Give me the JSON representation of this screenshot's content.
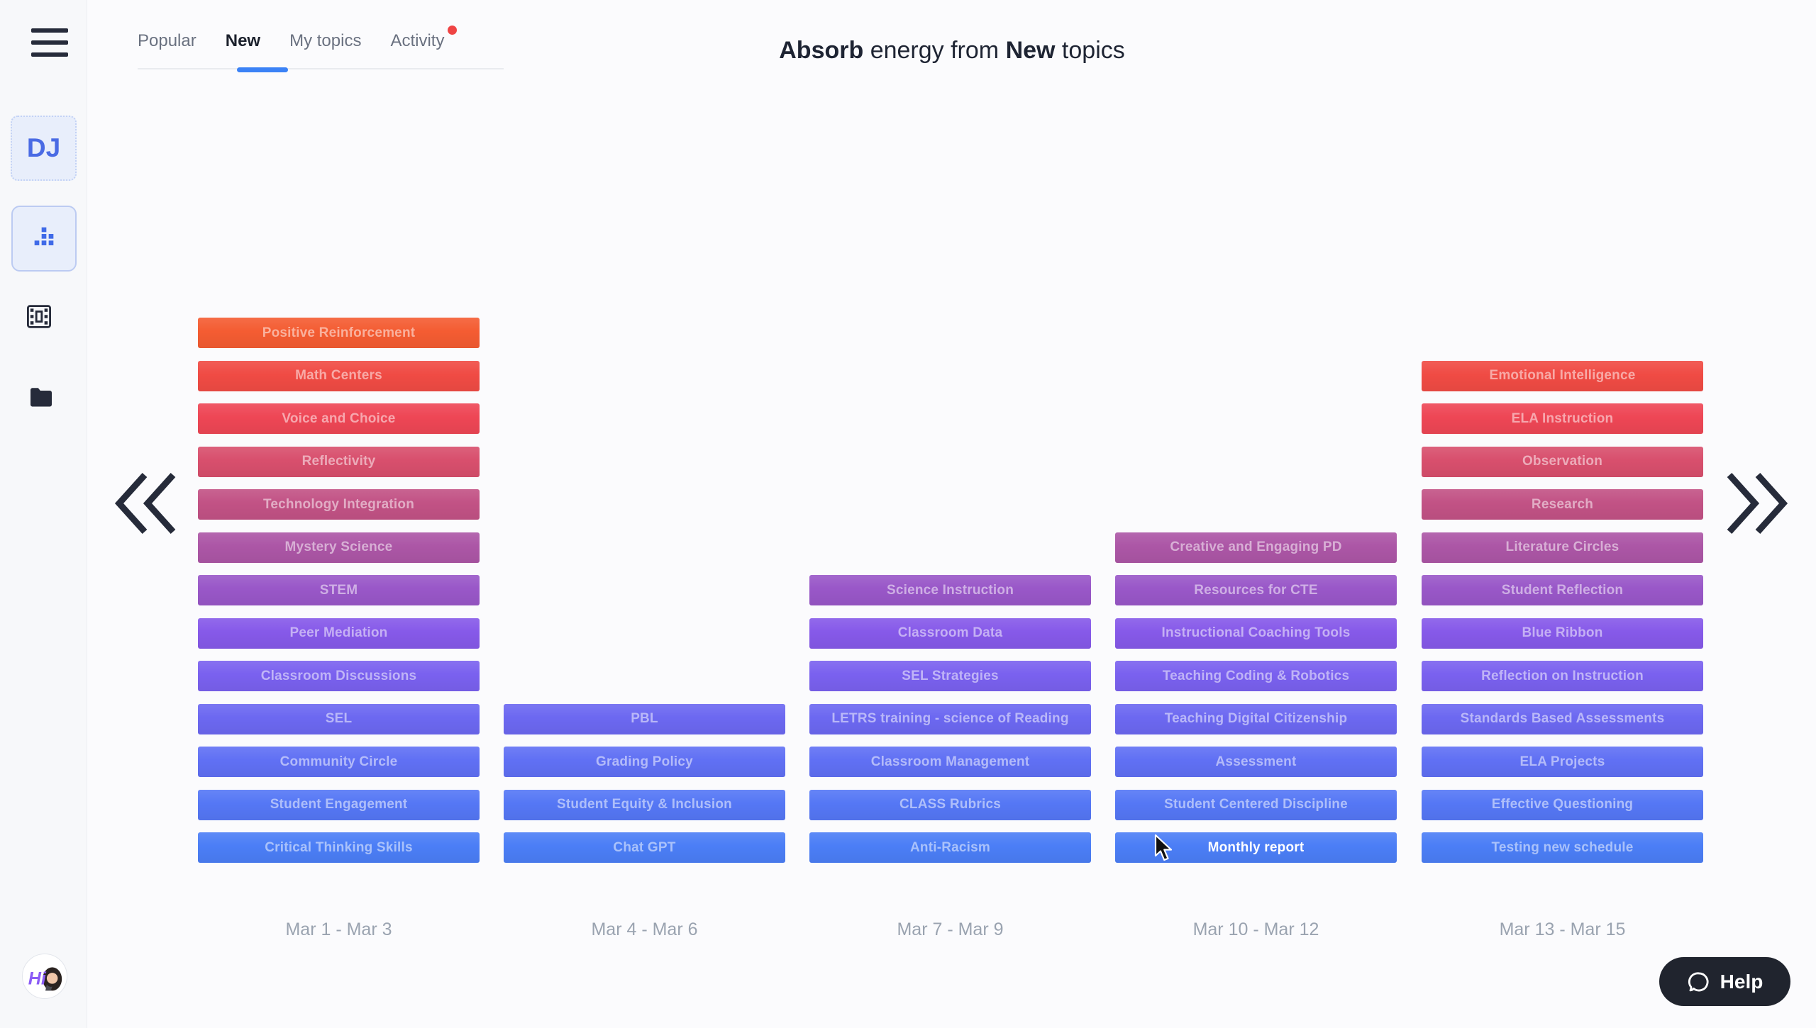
{
  "sidebar": {
    "initials": "DJ"
  },
  "tabs": [
    {
      "label": "Popular",
      "active": false
    },
    {
      "label": "New",
      "active": true
    },
    {
      "label": "My topics",
      "active": false
    },
    {
      "label": "Activity",
      "active": false,
      "notification": true
    }
  ],
  "title": {
    "part1_bold": "Absorb",
    "part2": " energy from ",
    "part3_bold": "New",
    "part4": " topics"
  },
  "help": {
    "label": "Help"
  },
  "colors": {
    "accent_blue": "#3b82f6",
    "notification_red": "#ef4444",
    "icon_dark": "#262b3a",
    "help_background": "#20242e"
  },
  "chart_data": {
    "type": "bar",
    "title": "Absorb energy from New topics",
    "categories": [
      "Mar 1 - Mar 3",
      "Mar 4 - Mar 6",
      "Mar 7 - Mar 9",
      "Mar 10 - Mar 12",
      "Mar 13 - Mar 15"
    ],
    "values": [
      13,
      4,
      7,
      8,
      12
    ],
    "highlighted_topic": "Monthly report",
    "row_colors_bottom_to_top": [
      "#4b7ef6",
      "#5577f5",
      "#6070f4",
      "#6c68f1",
      "#7a61ef",
      "#8659e9",
      "#9957c8",
      "#ac56a6",
      "#c25285",
      "#d84f6d",
      "#ee4655",
      "#f04b44",
      "#f45c32"
    ],
    "columns": [
      {
        "label": "Mar 1 - Mar 3",
        "topics": [
          "Positive Reinforcement",
          "Math Centers",
          "Voice and Choice",
          "Reflectivity",
          "Technology Integration",
          "Mystery Science",
          "STEM",
          "Peer Mediation",
          "Classroom Discussions",
          "SEL",
          "Community Circle",
          "Student Engagement",
          "Critical Thinking Skills"
        ]
      },
      {
        "label": "Mar 4 - Mar 6",
        "topics": [
          "PBL",
          "Grading Policy",
          "Student Equity & Inclusion",
          "Chat GPT"
        ]
      },
      {
        "label": "Mar 7 - Mar 9",
        "topics": [
          "Science Instruction",
          "Classroom Data",
          "SEL Strategies",
          "LETRS training - science of Reading",
          "Classroom Management",
          "CLASS Rubrics",
          "Anti-Racism"
        ]
      },
      {
        "label": "Mar 10 - Mar 12",
        "topics": [
          "Creative and Engaging PD",
          "Resources for CTE",
          "Instructional Coaching Tools",
          "Teaching Coding & Robotics",
          "Teaching Digital Citizenship",
          "Assessment",
          "Student Centered Discipline",
          "Monthly report"
        ]
      },
      {
        "label": "Mar 13 - Mar 15",
        "topics": [
          "Emotional Intelligence",
          "ELA Instruction",
          "Observation",
          "Research",
          "Literature Circles",
          "Student Reflection",
          "Blue Ribbon",
          "Reflection on Instruction",
          "Standards Based Assessments",
          "ELA Projects",
          "Effective Questioning",
          "Testing new schedule"
        ]
      }
    ]
  }
}
